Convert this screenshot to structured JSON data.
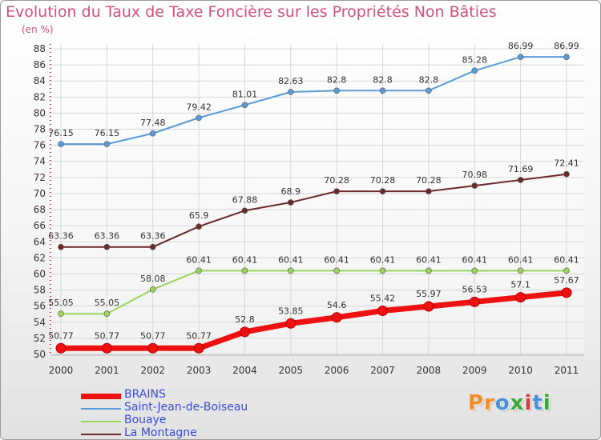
{
  "title": "Evolution du Taux de Taxe Foncière sur les Propriétés Non Bâties",
  "unit_label": "(en %)",
  "brand": {
    "letters": [
      "P",
      "r",
      "o",
      "x",
      "i",
      "t",
      "i"
    ],
    "colors": [
      "#f28c28",
      "#f28c28",
      "#4a90d9",
      "#3aa635",
      "#d93b3b",
      "#4a90d9",
      "#3aa635"
    ]
  },
  "chart_data": {
    "type": "line",
    "title": "Evolution du Taux de Taxe Foncière sur les Propriétés Non Bâties",
    "ylabel": "(en %)",
    "ylim": [
      50,
      88
    ],
    "yticks": [
      50,
      52,
      54,
      56,
      58,
      60,
      62,
      64,
      66,
      68,
      70,
      72,
      74,
      76,
      78,
      80,
      82,
      84,
      86,
      88
    ],
    "grid": true,
    "legend_position": "bottom-left",
    "x": [
      "2000",
      "2001",
      "2002",
      "2003",
      "2004",
      "2005",
      "2006",
      "2007",
      "2008",
      "2009",
      "2010",
      "2011"
    ],
    "series": [
      {
        "name": "Saint-Jean-de-Boiseau",
        "color": "#5b9bd5",
        "values": [
          76.15,
          76.15,
          77.48,
          79.42,
          81.01,
          82.63,
          82.8,
          82.8,
          82.8,
          85.28,
          86.99,
          86.99
        ],
        "labels": [
          "76.15",
          "76.15",
          "77.48",
          "79.42",
          "81.01",
          "82.63",
          "82.8",
          "82.8",
          "82.8",
          "85.28",
          "86.99",
          "86.99"
        ]
      },
      {
        "name": "La Montagne",
        "color": "#6b2a2a",
        "values": [
          63.36,
          63.36,
          63.36,
          65.9,
          67.88,
          68.9,
          70.28,
          70.28,
          70.28,
          70.98,
          71.69,
          72.41
        ],
        "labels": [
          "63.36",
          "63.36",
          "63.36",
          "65.9",
          "67.88",
          "68.9",
          "70.28",
          "70.28",
          "70.28",
          "70.98",
          "71.69",
          "72.41"
        ]
      },
      {
        "name": "Bouaye",
        "color": "#9bd45a",
        "values": [
          55.05,
          55.05,
          58.08,
          60.41,
          60.41,
          60.41,
          60.41,
          60.41,
          60.41,
          60.41,
          60.41,
          60.41
        ],
        "labels": [
          "55.05",
          "55.05",
          "58.08",
          "60.41",
          "60.41",
          "60.41",
          "60.41",
          "60.41",
          "60.41",
          "60.41",
          "60.41",
          "60.41"
        ]
      },
      {
        "name": "BRAINS",
        "color": "#ee1111",
        "values": [
          50.77,
          50.77,
          50.77,
          50.77,
          52.8,
          53.85,
          54.6,
          55.42,
          55.97,
          56.53,
          57.1,
          57.67
        ],
        "labels": [
          "50.77",
          "50.77",
          "50.77",
          "50.77",
          "52.8",
          "53.85",
          "54.6",
          "55.42",
          "55.97",
          "56.53",
          "57.1",
          "57.67"
        ]
      }
    ],
    "legend": [
      "BRAINS",
      "Saint-Jean-de-Boiseau",
      "Bouaye",
      "La Montagne"
    ]
  }
}
